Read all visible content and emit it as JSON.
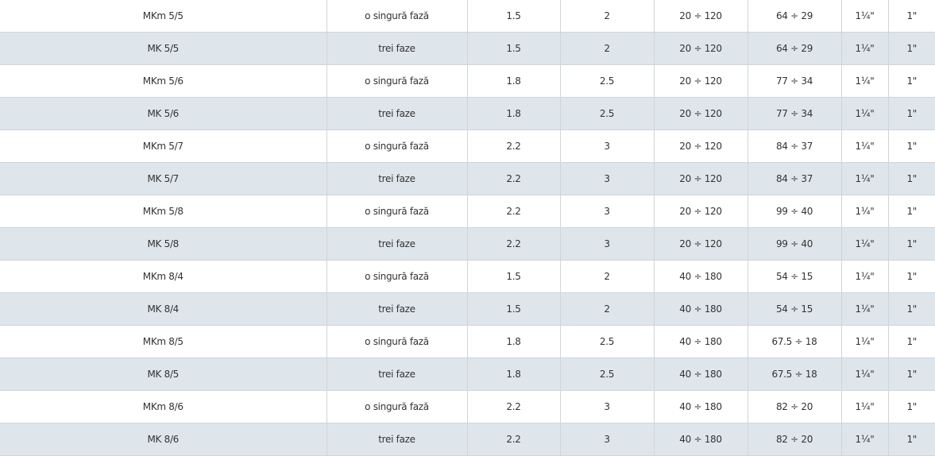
{
  "colors": {
    "row_alt": "#dfe6eb",
    "border": "#cfd5d9",
    "text": "#333333"
  },
  "rows": [
    [
      "MKm 5/5",
      "o singură fază",
      "1.5",
      "2",
      "20 ÷ 120",
      "64 ÷ 29",
      "1¼\"",
      "1\""
    ],
    [
      "MK 5/5",
      "trei faze",
      "1.5",
      "2",
      "20 ÷ 120",
      "64 ÷ 29",
      "1¼\"",
      "1\""
    ],
    [
      "MKm 5/6",
      "o singură fază",
      "1.8",
      "2.5",
      "20 ÷ 120",
      "77 ÷ 34",
      "1¼\"",
      "1\""
    ],
    [
      "MK 5/6",
      "trei faze",
      "1.8",
      "2.5",
      "20 ÷ 120",
      "77 ÷ 34",
      "1¼\"",
      "1\""
    ],
    [
      "MKm 5/7",
      "o singură fază",
      "2.2",
      "3",
      "20 ÷ 120",
      "84 ÷ 37",
      "1¼\"",
      "1\""
    ],
    [
      "MK 5/7",
      "trei faze",
      "2.2",
      "3",
      "20 ÷ 120",
      "84 ÷ 37",
      "1¼\"",
      "1\""
    ],
    [
      "MKm 5/8",
      "o singură fază",
      "2.2",
      "3",
      "20 ÷ 120",
      "99 ÷ 40",
      "1¼\"",
      "1\""
    ],
    [
      "MK 5/8",
      "trei faze",
      "2.2",
      "3",
      "20 ÷ 120",
      "99 ÷ 40",
      "1¼\"",
      "1\""
    ],
    [
      "MKm 8/4",
      "o singură fază",
      "1.5",
      "2",
      "40 ÷ 180",
      "54 ÷ 15",
      "1¼\"",
      "1\""
    ],
    [
      "MK 8/4",
      "trei faze",
      "1.5",
      "2",
      "40 ÷ 180",
      "54 ÷ 15",
      "1¼\"",
      "1\""
    ],
    [
      "MKm 8/5",
      "o singură fază",
      "1.8",
      "2.5",
      "40 ÷ 180",
      "67.5 ÷ 18",
      "1¼\"",
      "1\""
    ],
    [
      "MK 8/5",
      "trei faze",
      "1.8",
      "2.5",
      "40 ÷ 180",
      "67.5 ÷ 18",
      "1¼\"",
      "1\""
    ],
    [
      "MKm 8/6",
      "o singură fază",
      "2.2",
      "3",
      "40 ÷ 180",
      "82 ÷ 20",
      "1¼\"",
      "1\""
    ],
    [
      "MK 8/6",
      "trei faze",
      "2.2",
      "3",
      "40 ÷ 180",
      "82 ÷ 20",
      "1¼\"",
      "1\""
    ]
  ]
}
